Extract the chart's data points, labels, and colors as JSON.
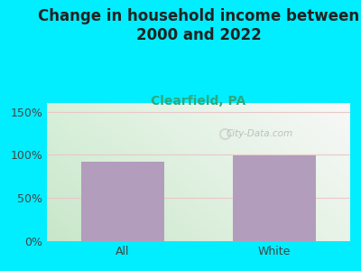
{
  "title": "Change in household income between\n2000 and 2022",
  "subtitle": "Clearfield, PA",
  "categories": [
    "All",
    "White"
  ],
  "values": [
    92,
    99
  ],
  "bar_color": "#b39dbd",
  "background_color": "#00eeff",
  "plot_bg_top_left": "#d4edda",
  "plot_bg_top_right": "#f8f8f8",
  "plot_bg_bottom_left": "#c8e6c9",
  "plot_bg_bottom_right": "#f0f0f0",
  "title_fontsize": 12,
  "subtitle_fontsize": 10,
  "subtitle_color": "#2ca87f",
  "ylabel_ticks": [
    0,
    50,
    100,
    150
  ],
  "ylim": [
    0,
    160
  ],
  "watermark": "City-Data.com",
  "grid_color": "#d0d0d0",
  "tick_label_fontsize": 9,
  "axis_label_fontsize": 9,
  "title_color": "#222222"
}
